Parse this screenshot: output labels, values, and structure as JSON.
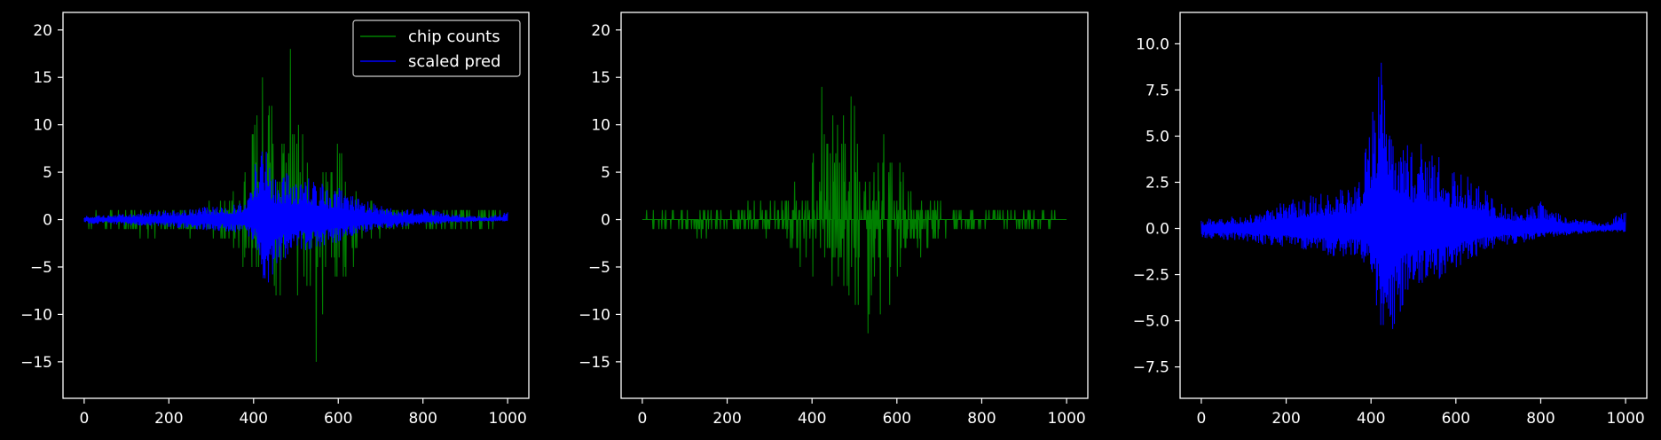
{
  "colors": {
    "background": "#000000",
    "axes": "#ffffff",
    "text": "#ffffff",
    "chip_counts": "#008000",
    "scaled_pred": "#0000ff"
  },
  "chart_data": [
    {
      "type": "line",
      "title": "",
      "xlabel": "",
      "ylabel": "",
      "xlim": [
        -50,
        1050
      ],
      "ylim": [
        -18.85,
        21.85
      ],
      "xticks": [
        0,
        200,
        400,
        600,
        800,
        1000
      ],
      "yticks": [
        -15,
        -10,
        -5,
        0,
        5,
        10,
        15,
        20
      ],
      "xtick_labels": [
        "0",
        "200",
        "400",
        "600",
        "800",
        "1000"
      ],
      "ytick_labels": [
        "−15",
        "−10",
        "−5",
        "0",
        "5",
        "10",
        "15",
        "20"
      ],
      "legend": {
        "position": "upper right",
        "entries": [
          "chip counts",
          "scaled pred"
        ]
      },
      "series": [
        {
          "name": "chip counts",
          "color": "#008000",
          "x": [
            0,
            50,
            100,
            150,
            200,
            250,
            300,
            350,
            380,
            400,
            420,
            440,
            460,
            480,
            485,
            500,
            520,
            540,
            555,
            560,
            580,
            600,
            620,
            650,
            700,
            750,
            800,
            850,
            900,
            950,
            1000
          ],
          "y_max": [
            0.5,
            1,
            1,
            1,
            1,
            2,
            2,
            3,
            6,
            9,
            15,
            12,
            11,
            13,
            20,
            12,
            9,
            8,
            7,
            11,
            8,
            8,
            5,
            3,
            2,
            1,
            1,
            1,
            1,
            1,
            1
          ],
          "y_min": [
            -0.5,
            -1,
            -1,
            -2,
            -1,
            -2,
            -2,
            -3,
            -6,
            -6,
            -4,
            -6,
            -12,
            -9,
            -8,
            -10,
            -9,
            -15,
            -17,
            -11,
            -9,
            -8,
            -6,
            -4,
            -2,
            -1,
            -1,
            -1,
            -1,
            -1,
            0
          ]
        },
        {
          "name": "scaled pred",
          "color": "#0000ff",
          "x": [
            0,
            50,
            100,
            150,
            200,
            250,
            300,
            350,
            380,
            390,
            400,
            410,
            420,
            430,
            440,
            450,
            460,
            480,
            500,
            520,
            540,
            560,
            580,
            600,
            620,
            650,
            700,
            750,
            800,
            850,
            900,
            950,
            1000
          ],
          "y_max": [
            0.4,
            0.5,
            0.6,
            0.8,
            1,
            1.2,
            1.4,
            1.5,
            2,
            5,
            6,
            7,
            10,
            8,
            6,
            5,
            4,
            5,
            4,
            5,
            4,
            4,
            3,
            3.5,
            3,
            2.2,
            1.5,
            1,
            1.2,
            0.8,
            0.5,
            0.3,
            0.8
          ],
          "y_min": [
            -0.4,
            -0.5,
            -0.6,
            -0.7,
            -0.8,
            -1,
            -1.2,
            -1.3,
            -1.5,
            -2,
            -2.2,
            -4,
            -6,
            -7,
            -8,
            -6,
            -5,
            -4,
            -3,
            -3.5,
            -3,
            -3,
            -2.5,
            -2.5,
            -2,
            -1.5,
            -1,
            -0.8,
            -0.6,
            -0.4,
            -0.3,
            -0.2,
            -0.2
          ]
        }
      ]
    },
    {
      "type": "line",
      "title": "",
      "xlabel": "",
      "ylabel": "",
      "xlim": [
        -50,
        1050
      ],
      "ylim": [
        -18.85,
        21.85
      ],
      "xticks": [
        0,
        200,
        400,
        600,
        800,
        1000
      ],
      "yticks": [
        -15,
        -10,
        -5,
        0,
        5,
        10,
        15,
        20
      ],
      "xtick_labels": [
        "0",
        "200",
        "400",
        "600",
        "800",
        "1000"
      ],
      "ytick_labels": [
        "−15",
        "−10",
        "−5",
        "0",
        "5",
        "10",
        "15",
        "20"
      ],
      "series": [
        {
          "name": "chip counts",
          "color": "#008000",
          "x": [
            0,
            50,
            100,
            150,
            200,
            250,
            300,
            350,
            380,
            400,
            420,
            440,
            460,
            480,
            485,
            500,
            520,
            540,
            555,
            560,
            580,
            600,
            620,
            650,
            700,
            750,
            800,
            850,
            900,
            950,
            1000
          ],
          "y_max": [
            0.5,
            1,
            1,
            1,
            1,
            2,
            2,
            3,
            6,
            9,
            15,
            12,
            11,
            13,
            20,
            12,
            9,
            8,
            7,
            11,
            8,
            8,
            5,
            3,
            2,
            1,
            1,
            1,
            1,
            1,
            1
          ],
          "y_min": [
            -0.5,
            -1,
            -1,
            -2,
            -1,
            -2,
            -2,
            -3,
            -6,
            -6,
            -4,
            -6,
            -12,
            -9,
            -8,
            -10,
            -9,
            -15,
            -17,
            -11,
            -9,
            -8,
            -6,
            -4,
            -2,
            -1,
            -1,
            -1,
            -1,
            -1,
            0
          ]
        }
      ]
    },
    {
      "type": "line",
      "title": "",
      "xlabel": "",
      "ylabel": "",
      "xlim": [
        -50,
        1050
      ],
      "ylim": [
        -9.2,
        11.7
      ],
      "xticks": [
        0,
        200,
        400,
        600,
        800,
        1000
      ],
      "yticks": [
        -7.5,
        -5.0,
        -2.5,
        0.0,
        2.5,
        5.0,
        7.5,
        10.0
      ],
      "xtick_labels": [
        "0",
        "200",
        "400",
        "600",
        "800",
        "1000"
      ],
      "ytick_labels": [
        "−7.5",
        "−5.0",
        "−2.5",
        "0.0",
        "2.5",
        "5.0",
        "7.5",
        "10.0"
      ],
      "series": [
        {
          "name": "scaled pred",
          "color": "#0000ff",
          "x": [
            0,
            50,
            100,
            150,
            200,
            250,
            300,
            350,
            380,
            390,
            400,
            410,
            420,
            430,
            440,
            450,
            460,
            480,
            500,
            520,
            540,
            560,
            580,
            600,
            620,
            650,
            700,
            750,
            800,
            850,
            900,
            950,
            1000
          ],
          "y_max": [
            0.5,
            0.6,
            0.7,
            1,
            1.5,
            1.8,
            2,
            2.2,
            3,
            5,
            6,
            7,
            10.7,
            8,
            6,
            5,
            4,
            5,
            4,
            5,
            4,
            4,
            3,
            3.5,
            3,
            2.5,
            1.5,
            1,
            1.5,
            0.8,
            0.5,
            0.3,
            1
          ],
          "y_min": [
            -0.5,
            -0.6,
            -0.7,
            -0.9,
            -1,
            -1.2,
            -1.5,
            -1.6,
            -1.8,
            -2,
            -2.2,
            -4,
            -6,
            -7.5,
            -8.3,
            -6,
            -5,
            -4,
            -3,
            -3.5,
            -3,
            -3,
            -2.5,
            -2.5,
            -2,
            -1.5,
            -1,
            -0.8,
            -0.6,
            -0.4,
            -0.3,
            -0.2,
            -0.2
          ]
        }
      ]
    }
  ]
}
